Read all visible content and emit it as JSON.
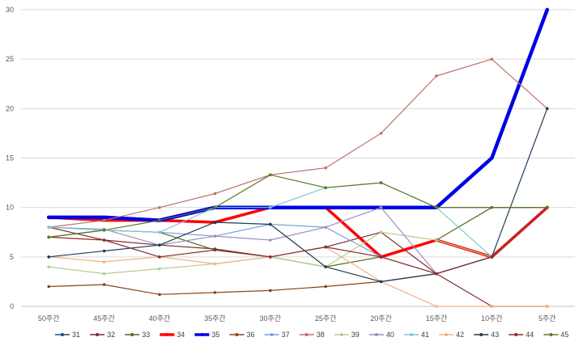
{
  "chart_data": {
    "type": "line",
    "title": "",
    "xlabel": "",
    "ylabel": "",
    "categories": [
      "50주간",
      "45주간",
      "40주간",
      "35주간",
      "30주간",
      "25주간",
      "20주간",
      "15주간",
      "10주간",
      "5주간"
    ],
    "ylim": [
      0,
      30
    ],
    "yticks": [
      0,
      5,
      10,
      15,
      20,
      25,
      30
    ],
    "grid": "horizontal",
    "legend_position": "bottom",
    "series": [
      {
        "name": "31",
        "color": "#1f4e79",
        "width": 1.2,
        "values": [
          9,
          9,
          8.7,
          10,
          10,
          10,
          10,
          10,
          10,
          10
        ]
      },
      {
        "name": "32",
        "color": "#7b2c2c",
        "width": 1.2,
        "values": [
          8,
          6.7,
          6.2,
          5.8,
          5,
          6,
          7.5,
          3.3,
          0,
          0
        ]
      },
      {
        "name": "33",
        "color": "#4e6b1f",
        "width": 1.2,
        "values": [
          7,
          7.7,
          7.5,
          5.7,
          5,
          4,
          5,
          6.7,
          10,
          10
        ]
      },
      {
        "name": "34",
        "color": "#ff0000",
        "width": 3.5,
        "values": [
          9,
          8.7,
          8.7,
          8.5,
          10,
          10,
          5,
          6.7,
          5,
          10
        ]
      },
      {
        "name": "35",
        "color": "#0000e6",
        "width": 4.5,
        "values": [
          9,
          9,
          8.7,
          10,
          10,
          10,
          10,
          10,
          15,
          30
        ]
      },
      {
        "name": "36",
        "color": "#8b4513",
        "width": 1.2,
        "values": [
          2,
          2.2,
          1.2,
          1.4,
          1.6,
          2,
          2.5,
          3.3,
          5,
          10
        ]
      },
      {
        "name": "37",
        "color": "#7aa2d6",
        "width": 1.2,
        "values": [
          8,
          7.7,
          7.5,
          7.1,
          8.3,
          8,
          5,
          3.3,
          5,
          10
        ]
      },
      {
        "name": "38",
        "color": "#c0706a",
        "width": 1.2,
        "values": [
          8,
          8.7,
          10,
          11.4,
          13.3,
          14,
          17.5,
          23.3,
          25,
          20
        ]
      },
      {
        "name": "39",
        "color": "#b5cc8e",
        "width": 1.2,
        "values": [
          4,
          3.3,
          3.8,
          4.3,
          5,
          4,
          7.5,
          6.7,
          5,
          10
        ]
      },
      {
        "name": "40",
        "color": "#9d8ec2",
        "width": 1.2,
        "values": [
          8,
          7.8,
          6.2,
          7.1,
          6.7,
          8,
          10,
          3.3,
          5,
          10
        ]
      },
      {
        "name": "41",
        "color": "#7fc7d9",
        "width": 1.2,
        "values": [
          8,
          7.7,
          7.5,
          10,
          10,
          12,
          12.5,
          10,
          5,
          10
        ]
      },
      {
        "name": "42",
        "color": "#f4b183",
        "width": 1.2,
        "values": [
          5,
          4.5,
          5,
          4.3,
          5,
          6,
          2.5,
          0,
          0,
          0
        ]
      },
      {
        "name": "43",
        "color": "#1f3b57",
        "width": 1.2,
        "values": [
          5,
          5.6,
          6.2,
          8.5,
          8.3,
          4,
          2.5,
          3.3,
          5,
          20
        ]
      },
      {
        "name": "44",
        "color": "#8b2a2a",
        "width": 1.2,
        "values": [
          7,
          6.7,
          5,
          5.7,
          5,
          6,
          5,
          3.3,
          5,
          10
        ]
      },
      {
        "name": "45",
        "color": "#5d7a25",
        "width": 1.2,
        "values": [
          7,
          7.7,
          8.7,
          10,
          13.3,
          12,
          12.5,
          10,
          10,
          10
        ]
      }
    ]
  }
}
